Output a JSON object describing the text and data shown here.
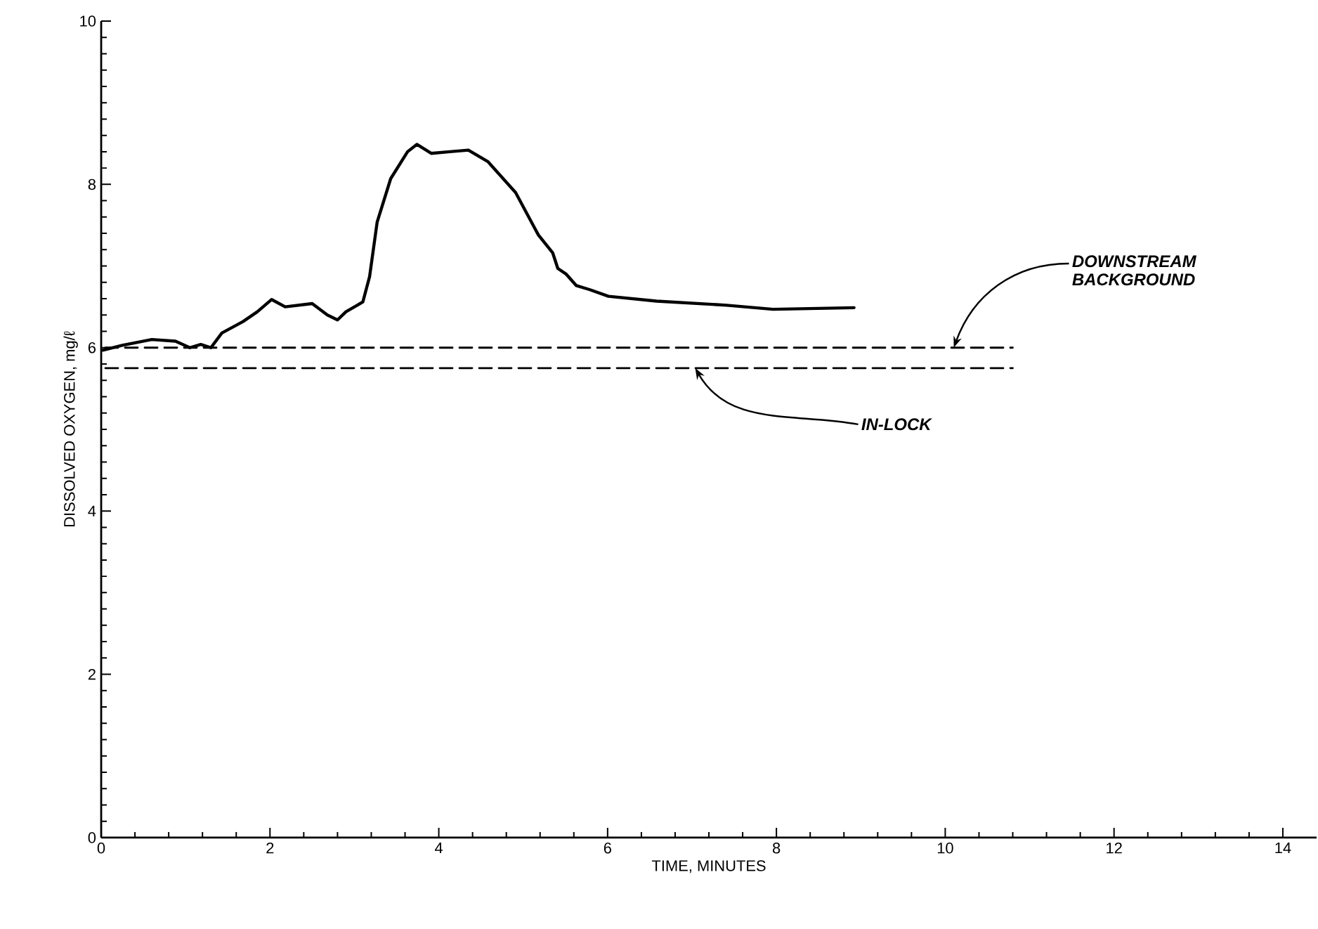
{
  "chart_data": {
    "type": "line",
    "xlabel": "TIME, MINUTES",
    "ylabel": "DISSOLVED OXYGEN, mg/ℓ",
    "xlim": [
      0,
      14.4
    ],
    "xticks": [
      0,
      2,
      4,
      6,
      8,
      10,
      12,
      14
    ],
    "ylim": [
      0,
      10
    ],
    "yticks": [
      0,
      2,
      4,
      6,
      8,
      10
    ],
    "grid": false,
    "marker": "none",
    "series": [
      {
        "color": "#000000",
        "line_style": "solid",
        "x": [
          0.02,
          0.25,
          0.6,
          0.88,
          1.05,
          1.18,
          1.3,
          1.43,
          1.68,
          1.85,
          2.02,
          2.18,
          2.5,
          2.68,
          2.8,
          2.9,
          3.1,
          3.18,
          3.27,
          3.43,
          3.63,
          3.74,
          3.91,
          4.13,
          4.35,
          4.58,
          4.91,
          5.18,
          5.35,
          5.41,
          5.51,
          5.63,
          5.79,
          6.01,
          6.58,
          7.41,
          7.96,
          8.92
        ],
        "values": [
          5.97,
          6.03,
          6.1,
          6.08,
          6.0,
          6.04,
          6.0,
          6.18,
          6.32,
          6.44,
          6.59,
          6.5,
          6.54,
          6.4,
          6.34,
          6.44,
          6.56,
          6.87,
          7.54,
          8.07,
          8.4,
          8.49,
          8.38,
          8.4,
          8.42,
          8.28,
          7.9,
          7.38,
          7.16,
          6.97,
          6.9,
          6.76,
          6.71,
          6.63,
          6.57,
          6.52,
          6.47,
          6.49
        ]
      },
      {
        "name": "DOWNSTREAM\nBACKGROUND",
        "color": "#000000",
        "line_style": "dashed",
        "x": [
          0.05,
          10.8
        ],
        "values": [
          6.0,
          6.0
        ]
      },
      {
        "name": "IN-LOCK",
        "color": "#000000",
        "line_style": "dashed",
        "x": [
          0.05,
          10.8
        ],
        "values": [
          5.75,
          5.75
        ]
      }
    ]
  }
}
